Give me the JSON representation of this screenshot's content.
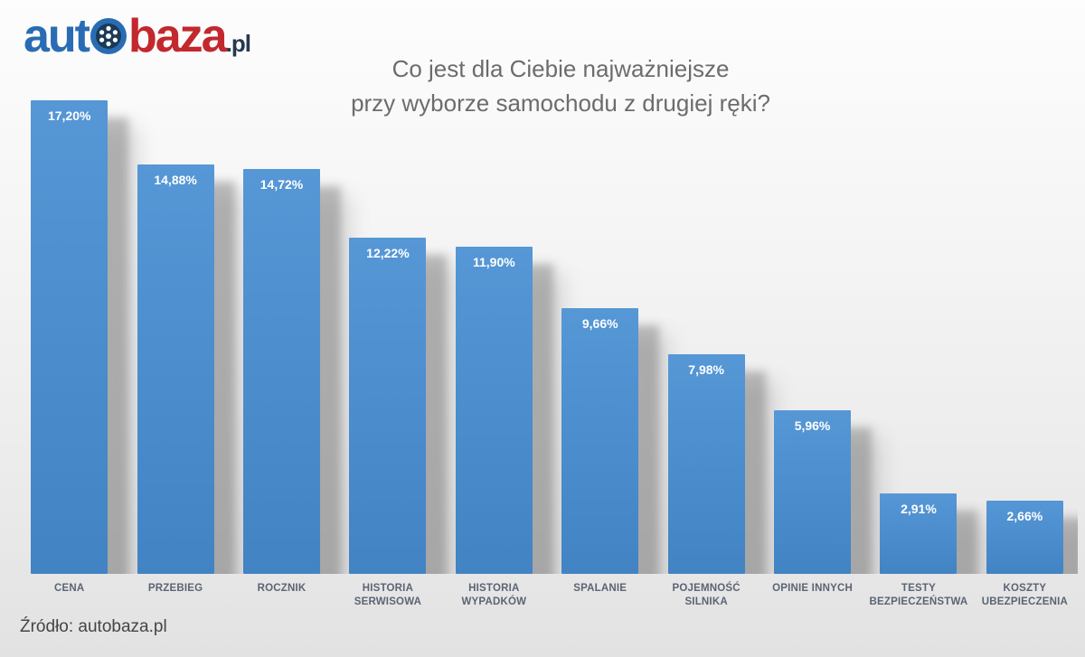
{
  "logo": {
    "part1": "aut",
    "part2": "baza",
    "suffix": ".pl",
    "colors": {
      "blue": "#2a6cb3",
      "red": "#c2282d",
      "navy": "#25394e",
      "wheel_dark": "#1b3a57"
    }
  },
  "title": {
    "line1": "Co jest dla Ciebie najważniejsze",
    "line2": "przy wyborze samochodu z drugiej ręki?"
  },
  "source": "Źródło: autobaza.pl",
  "colors": {
    "bar": "#4a8ccc",
    "bar_gradient_top": "#5697d6",
    "bar_gradient_bottom": "#4283c4",
    "value_label": "#ffffff",
    "category_label": "#5b6474",
    "title_gray": "#6c6c6c",
    "background_top": "#fdfdfd",
    "background_bottom": "#e2e2e2"
  },
  "chart_data": {
    "type": "bar",
    "title": "Co jest dla Ciebie najważniejsze przy wyborze samochodu z drugiej ręki?",
    "categories": [
      "CENA",
      "PRZEBIEG",
      "ROCZNIK",
      "HISTORIA\nSERWISOWA",
      "HISTORIA\nWYPADKÓW",
      "SPALANIE",
      "POJEMNOŚĆ\nSILNIKA",
      "OPINIE INNYCH",
      "TESTY\nBEZPIECZEŃSTWA",
      "KOSZTY\nUBEZPIECZENIA"
    ],
    "values": [
      17.2,
      14.88,
      14.72,
      12.22,
      11.9,
      9.66,
      7.98,
      5.96,
      2.91,
      2.66
    ],
    "value_labels": [
      "17,20%",
      "14,88%",
      "14,72%",
      "12,22%",
      "11,90%",
      "9,66%",
      "7,98%",
      "5,96%",
      "2,91%",
      "2,66%"
    ],
    "unit": "%",
    "xlabel": "",
    "ylabel": "",
    "ylim": [
      0,
      17.5
    ],
    "grid": false,
    "legend": false,
    "axes_visible": false,
    "bar_color": "#4a8ccc"
  }
}
